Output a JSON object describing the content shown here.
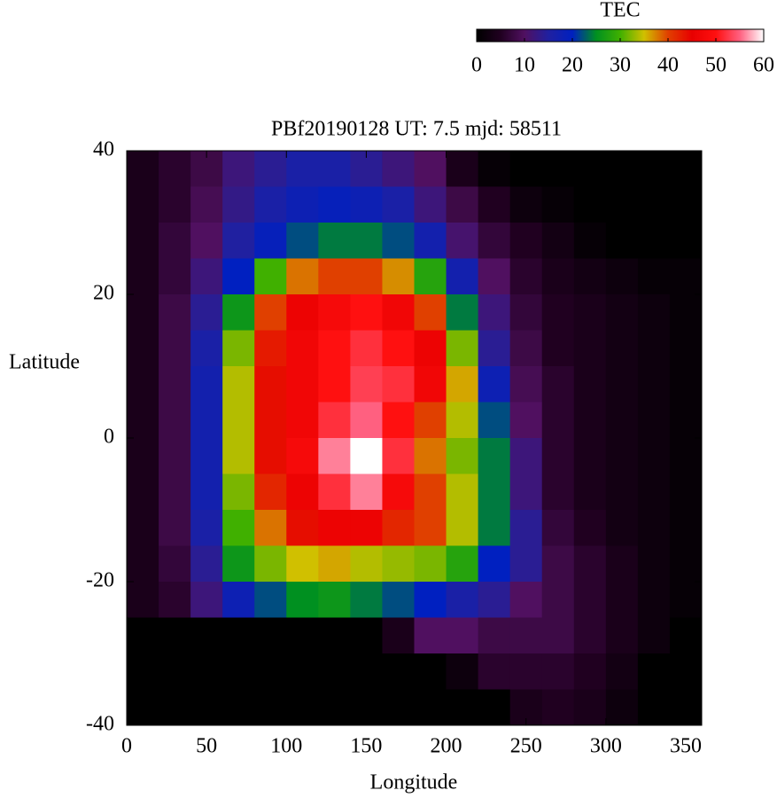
{
  "chart_data": {
    "type": "heatmap",
    "title": "PBf20190128  UT: 7.5  mjd: 58511",
    "xlabel": "Longitude",
    "ylabel": "Latitude",
    "xlim": [
      0,
      360
    ],
    "ylim": [
      -40,
      40
    ],
    "xticks": [
      0,
      50,
      100,
      150,
      200,
      250,
      300,
      350
    ],
    "yticks": [
      -40,
      -20,
      0,
      20,
      40
    ],
    "x": [
      10,
      30,
      50,
      70,
      90,
      110,
      130,
      150,
      170,
      190,
      210,
      230,
      250,
      270,
      290,
      310,
      330,
      350
    ],
    "y": [
      37.5,
      32.5,
      27.5,
      22.5,
      17.5,
      12.5,
      7.5,
      2.5,
      -2.5,
      -7.5,
      -12.5,
      -17.5,
      -22.5,
      -27.5,
      -32.5,
      -37.5
    ],
    "z": [
      [
        4,
        6,
        8,
        12,
        14,
        16,
        16,
        14,
        12,
        10,
        4,
        1,
        0,
        0,
        0,
        0,
        0,
        0
      ],
      [
        4,
        6,
        9,
        13,
        16,
        18,
        19,
        18,
        16,
        12,
        8,
        5,
        2,
        1,
        0,
        0,
        0,
        0
      ],
      [
        4,
        7,
        10,
        15,
        19,
        22,
        24,
        24,
        22,
        17,
        11,
        7,
        5,
        3,
        1,
        0,
        0,
        0
      ],
      [
        4,
        7,
        12,
        20,
        30,
        38,
        40,
        40,
        37,
        28,
        17,
        10,
        6,
        4,
        3,
        2,
        1,
        1
      ],
      [
        4,
        8,
        14,
        26,
        40,
        46,
        48,
        50,
        47,
        40,
        24,
        12,
        7,
        5,
        4,
        3,
        2,
        1
      ],
      [
        4,
        8,
        16,
        32,
        43,
        47,
        50,
        52,
        50,
        46,
        32,
        14,
        8,
        5,
        4,
        3,
        2,
        1
      ],
      [
        4,
        8,
        17,
        34,
        44,
        47,
        50,
        53,
        52,
        47,
        36,
        18,
        9,
        6,
        4,
        3,
        2,
        1
      ],
      [
        4,
        8,
        17,
        34,
        44,
        47,
        52,
        55,
        50,
        40,
        34,
        22,
        10,
        6,
        4,
        3,
        2,
        1
      ],
      [
        4,
        8,
        17,
        34,
        44,
        48,
        56,
        60,
        52,
        38,
        32,
        24,
        12,
        6,
        4,
        3,
        2,
        1
      ],
      [
        4,
        8,
        17,
        32,
        42,
        46,
        52,
        56,
        48,
        40,
        34,
        24,
        12,
        6,
        4,
        3,
        2,
        1
      ],
      [
        4,
        8,
        16,
        30,
        38,
        44,
        46,
        46,
        42,
        40,
        34,
        24,
        14,
        7,
        5,
        3,
        2,
        1
      ],
      [
        4,
        7,
        14,
        26,
        32,
        35,
        36,
        34,
        33,
        32,
        28,
        20,
        14,
        8,
        6,
        4,
        2,
        1
      ],
      [
        4,
        6,
        12,
        18,
        22,
        25,
        26,
        24,
        22,
        20,
        16,
        14,
        10,
        8,
        6,
        4,
        2,
        1
      ],
      [
        0,
        0,
        0,
        0,
        0,
        0,
        0,
        0,
        4,
        10,
        10,
        8,
        8,
        8,
        6,
        4,
        2,
        0
      ],
      [
        0,
        0,
        0,
        0,
        0,
        0,
        0,
        0,
        0,
        0,
        2,
        6,
        6,
        6,
        5,
        3,
        0,
        0
      ],
      [
        0,
        0,
        0,
        0,
        0,
        0,
        0,
        0,
        0,
        0,
        0,
        0,
        4,
        5,
        4,
        2,
        0,
        0
      ]
    ],
    "colorbar": {
      "label": "TEC",
      "lim": [
        0,
        60
      ],
      "ticks": [
        0,
        10,
        20,
        30,
        40,
        50,
        60
      ],
      "colorscale": [
        "#000000",
        "#200020",
        "#501060",
        "#2020a0",
        "#0020c0",
        "#009020",
        "#40b000",
        "#d0c000",
        "#e04000",
        "#e80000",
        "#ff1010",
        "#ff6080",
        "#ffffff"
      ]
    }
  }
}
